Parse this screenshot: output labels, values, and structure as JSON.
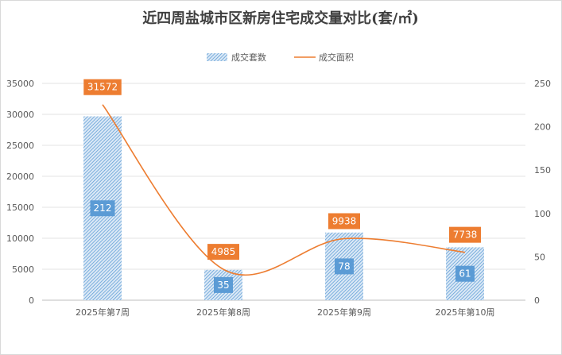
{
  "chart_data": {
    "type": "bar",
    "title": "近四周盐城市区新房住宅成交量对比(套/㎡)",
    "categories": [
      "2025年第7周",
      "2025年第8周",
      "2025年第9周",
      "2025年第10周"
    ],
    "series": [
      {
        "name": "成交套数",
        "kind": "bar",
        "axis": "secondary",
        "values": [
          212,
          35,
          78,
          61
        ],
        "color": "#5b9bd5"
      },
      {
        "name": "成交面积",
        "kind": "line",
        "smooth": true,
        "axis": "primary",
        "values": [
          31572,
          4985,
          9938,
          7738
        ],
        "color": "#ed7d31"
      }
    ],
    "y_left": {
      "min": 0,
      "max": 35000,
      "step": 5000,
      "ticks": [
        "0",
        "5000",
        "10000",
        "15000",
        "20000",
        "25000",
        "30000",
        "35000"
      ]
    },
    "y_right": {
      "min": 0,
      "max": 250,
      "step": 50,
      "ticks": [
        "0",
        "50",
        "100",
        "150",
        "200",
        "250"
      ]
    },
    "grid": true,
    "legend_position": "top"
  }
}
